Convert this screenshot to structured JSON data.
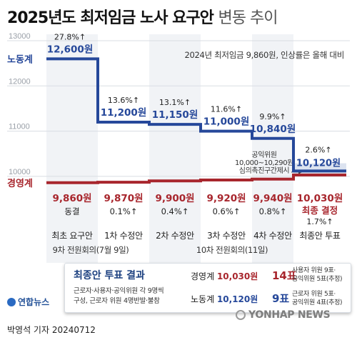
{
  "title_bold": "2025년도 최저임금 노사 요구안",
  "title_light": "변동 추이",
  "note": "2024년 최저임금 9,860원, 인상률은 올해 대비",
  "colors": {
    "labor": "#26489a",
    "management": "#a8262d",
    "final_band": "#dce3f0"
  },
  "chart_data": {
    "type": "line",
    "ylim": [
      9500,
      13300
    ],
    "yticks": [
      10000,
      11000,
      12000,
      13000
    ],
    "stages": [
      "최초 요구안",
      "1차 수정안",
      "2차 수정안",
      "3차 수정안",
      "4차 수정안",
      "최종안 투표"
    ],
    "meetings": [
      "9차 전원회의(7월 9일)",
      "10차 전원회의(11일)"
    ],
    "series": [
      {
        "name": "노동계",
        "values": [
          12600,
          11200,
          11150,
          11000,
          10840,
          10120
        ],
        "labels": [
          "12,600원",
          "11,200원",
          "11,150원",
          "11,000원",
          "10,840원",
          "10,120원"
        ],
        "rates": [
          "27.8%↑",
          "13.6%↑",
          "13.1%↑",
          "11.6%↑",
          "9.9%↑",
          "2.6%↑"
        ]
      },
      {
        "name": "경영계",
        "values": [
          9860,
          9870,
          9900,
          9920,
          9940,
          10030
        ],
        "labels": [
          "9,860원",
          "9,870원",
          "9,900원",
          "9,920원",
          "9,940원",
          "10,030원"
        ],
        "rates": [
          "동결",
          "0.1%↑",
          "0.4%↑",
          "0.6%↑",
          "0.8%↑",
          "1.7%↑"
        ]
      }
    ],
    "final_tag": "최종 결정",
    "public_band": {
      "range": [
        10000,
        10290
      ],
      "text": [
        "공익위원",
        "10,000~10,290원",
        "심의촉진구간제시"
      ]
    }
  },
  "vote_box": {
    "title": "최종안 투표 결과",
    "note1": "근로자·사용자·공익위원 각 9명씩",
    "note2": "구성, 근로자 위원 4명반발·불참",
    "management": {
      "label": "경영계",
      "amount": "10,030원",
      "votes": "14표",
      "detail1": "사용자 위원 9표·",
      "detail2": "공익위원 5표(추정)"
    },
    "labor": {
      "label": "노동계",
      "amount": "10,120원",
      "votes": "9표",
      "detail1": "근로자 위원 5표·",
      "detail2": "공익위원 4표(추정)"
    }
  },
  "logo_left": "연합뉴스",
  "credit": "박영석 기자 20240712",
  "watermark": "YONHAP NEWS"
}
